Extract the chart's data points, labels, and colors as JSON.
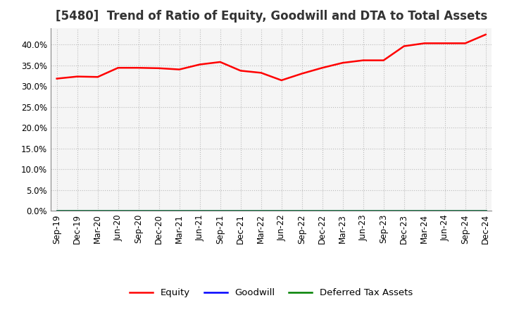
{
  "title": "[5480]  Trend of Ratio of Equity, Goodwill and DTA to Total Assets",
  "x_labels": [
    "Sep-19",
    "Dec-19",
    "Mar-20",
    "Jun-20",
    "Sep-20",
    "Dec-20",
    "Mar-21",
    "Jun-21",
    "Sep-21",
    "Dec-21",
    "Mar-22",
    "Jun-22",
    "Sep-22",
    "Dec-22",
    "Mar-23",
    "Jun-23",
    "Sep-23",
    "Dec-23",
    "Mar-24",
    "Jun-24",
    "Sep-24",
    "Dec-24"
  ],
  "equity": [
    0.318,
    0.323,
    0.322,
    0.344,
    0.344,
    0.343,
    0.34,
    0.352,
    0.358,
    0.337,
    0.332,
    0.314,
    0.33,
    0.344,
    0.356,
    0.362,
    0.362,
    0.396,
    0.403,
    0.403,
    0.403,
    0.424
  ],
  "goodwill": [
    0.0,
    0.0,
    0.0,
    0.0,
    0.0,
    0.0,
    0.0,
    0.0,
    0.0,
    0.0,
    0.0,
    0.0,
    0.0,
    0.0,
    0.0,
    0.0,
    0.0,
    0.0,
    0.0,
    0.0,
    0.0,
    0.0
  ],
  "dta": [
    0.0,
    0.0,
    0.0,
    0.0,
    0.0,
    0.0,
    0.0,
    0.0,
    0.0,
    0.0,
    0.0,
    0.0,
    0.0,
    0.0,
    0.0,
    0.0,
    0.0,
    0.0,
    0.0,
    0.0,
    0.0,
    0.0
  ],
  "equity_color": "#FF0000",
  "goodwill_color": "#0000FF",
  "dta_color": "#008000",
  "ylim": [
    0.0,
    0.44
  ],
  "yticks": [
    0.0,
    0.05,
    0.1,
    0.15,
    0.2,
    0.25,
    0.3,
    0.35,
    0.4
  ],
  "background_color": "#FFFFFF",
  "plot_bg_color": "#F5F5F5",
  "grid_color": "#BBBBBB",
  "title_fontsize": 12,
  "axis_fontsize": 8.5,
  "legend_fontsize": 9.5,
  "line_width": 1.8
}
